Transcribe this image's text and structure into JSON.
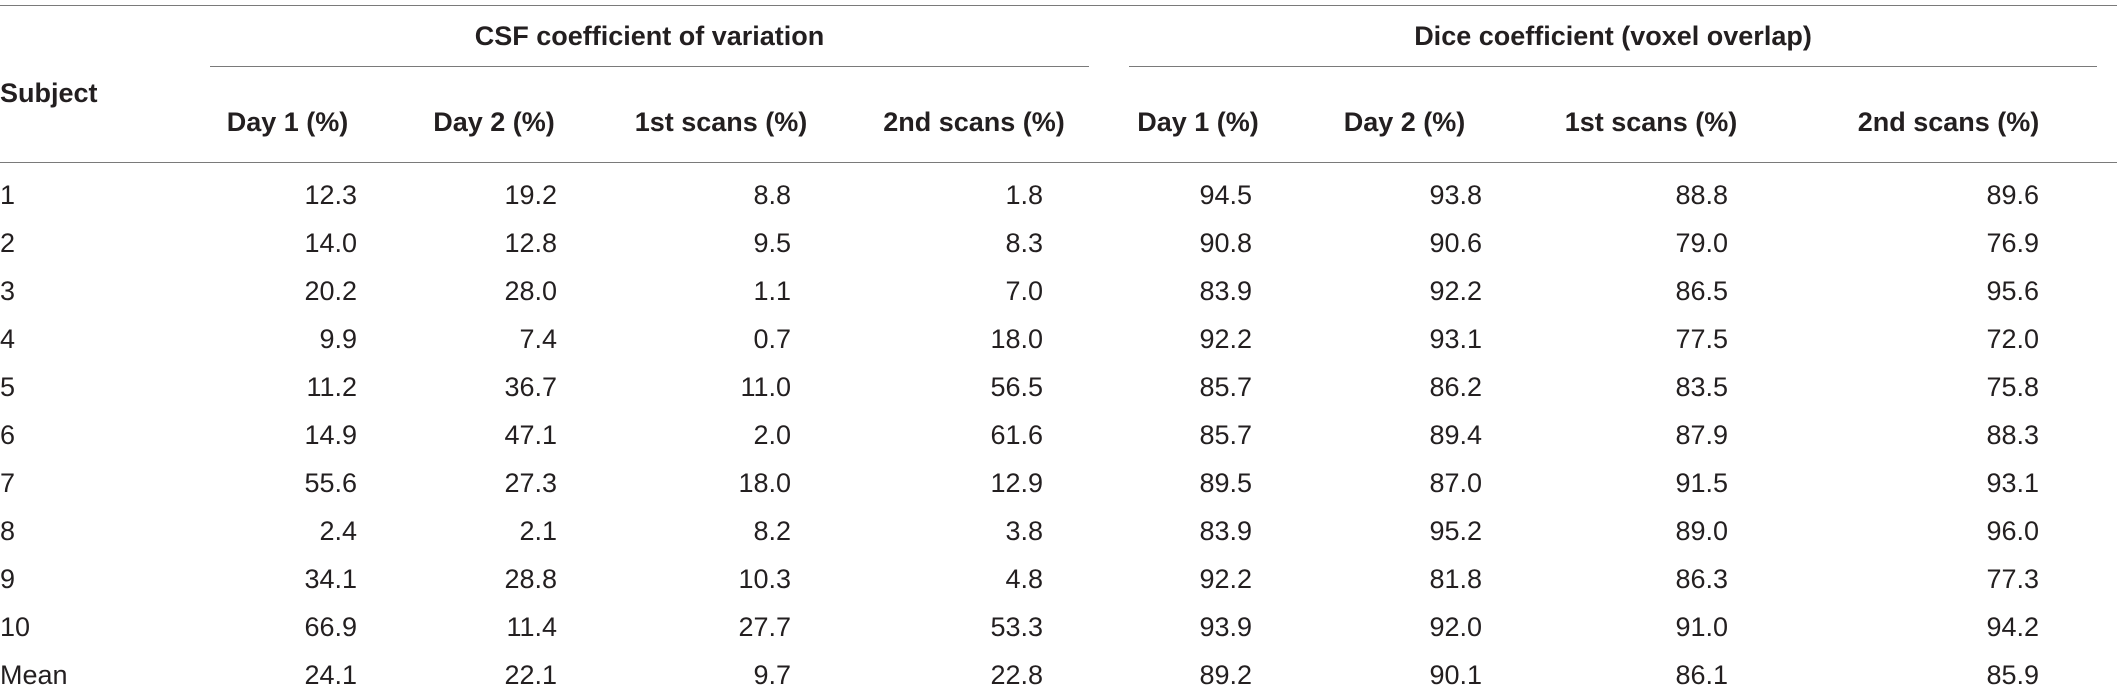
{
  "table": {
    "subject_header": "Subject",
    "group_headers": {
      "csf": "CSF coefficient of variation",
      "dice": "Dice coefficient (voxel overlap)"
    },
    "column_headers": [
      "Day 1 (%)",
      "Day 2 (%)",
      "1st scans (%)",
      "2nd scans (%)",
      "Day 1 (%)",
      "Day 2 (%)",
      "1st scans (%)",
      "2nd scans (%)"
    ],
    "rows": [
      {
        "subject": "1",
        "values": [
          "12.3",
          "19.2",
          "8.8",
          "1.8",
          "94.5",
          "93.8",
          "88.8",
          "89.6"
        ]
      },
      {
        "subject": "2",
        "values": [
          "14.0",
          "12.8",
          "9.5",
          "8.3",
          "90.8",
          "90.6",
          "79.0",
          "76.9"
        ]
      },
      {
        "subject": "3",
        "values": [
          "20.2",
          "28.0",
          "1.1",
          "7.0",
          "83.9",
          "92.2",
          "86.5",
          "95.6"
        ]
      },
      {
        "subject": "4",
        "values": [
          "9.9",
          "7.4",
          "0.7",
          "18.0",
          "92.2",
          "93.1",
          "77.5",
          "72.0"
        ]
      },
      {
        "subject": "5",
        "values": [
          "11.2",
          "36.7",
          "11.0",
          "56.5",
          "85.7",
          "86.2",
          "83.5",
          "75.8"
        ]
      },
      {
        "subject": "6",
        "values": [
          "14.9",
          "47.1",
          "2.0",
          "61.6",
          "85.7",
          "89.4",
          "87.9",
          "88.3"
        ]
      },
      {
        "subject": "7",
        "values": [
          "55.6",
          "27.3",
          "18.0",
          "12.9",
          "89.5",
          "87.0",
          "91.5",
          "93.1"
        ]
      },
      {
        "subject": "8",
        "values": [
          "2.4",
          "2.1",
          "8.2",
          "3.8",
          "83.9",
          "95.2",
          "89.0",
          "96.0"
        ]
      },
      {
        "subject": "9",
        "values": [
          "34.1",
          "28.8",
          "10.3",
          "4.8",
          "92.2",
          "81.8",
          "86.3",
          "77.3"
        ]
      },
      {
        "subject": "10",
        "values": [
          "66.9",
          "11.4",
          "27.7",
          "53.3",
          "93.9",
          "92.0",
          "91.0",
          "94.2"
        ]
      },
      {
        "subject": "Mean",
        "values": [
          "24.1",
          "22.1",
          "9.7",
          "22.8",
          "89.2",
          "90.1",
          "86.1",
          "85.9"
        ]
      }
    ]
  }
}
